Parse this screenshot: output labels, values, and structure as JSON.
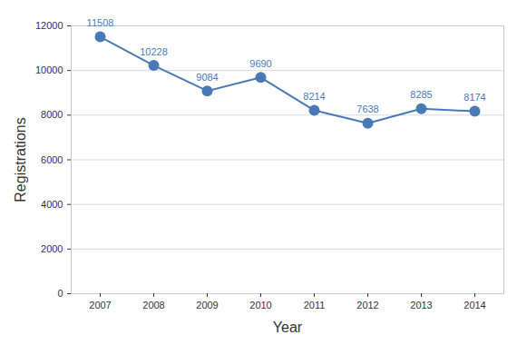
{
  "chart_data": {
    "type": "line",
    "x_label": "Year",
    "y_label": "Registrations",
    "categories": [
      "2007",
      "2008",
      "2009",
      "2010",
      "2011",
      "2012",
      "2013",
      "2014"
    ],
    "values": [
      11508,
      10228,
      9084,
      9690,
      8214,
      7638,
      8285,
      8174
    ],
    "color": "#4a7ab5",
    "marker": "circle",
    "ylim": [
      0,
      12000
    ],
    "yticks": [
      0,
      2000,
      4000,
      6000,
      8000,
      10000,
      12000
    ],
    "grid": true,
    "data_labels": true
  }
}
